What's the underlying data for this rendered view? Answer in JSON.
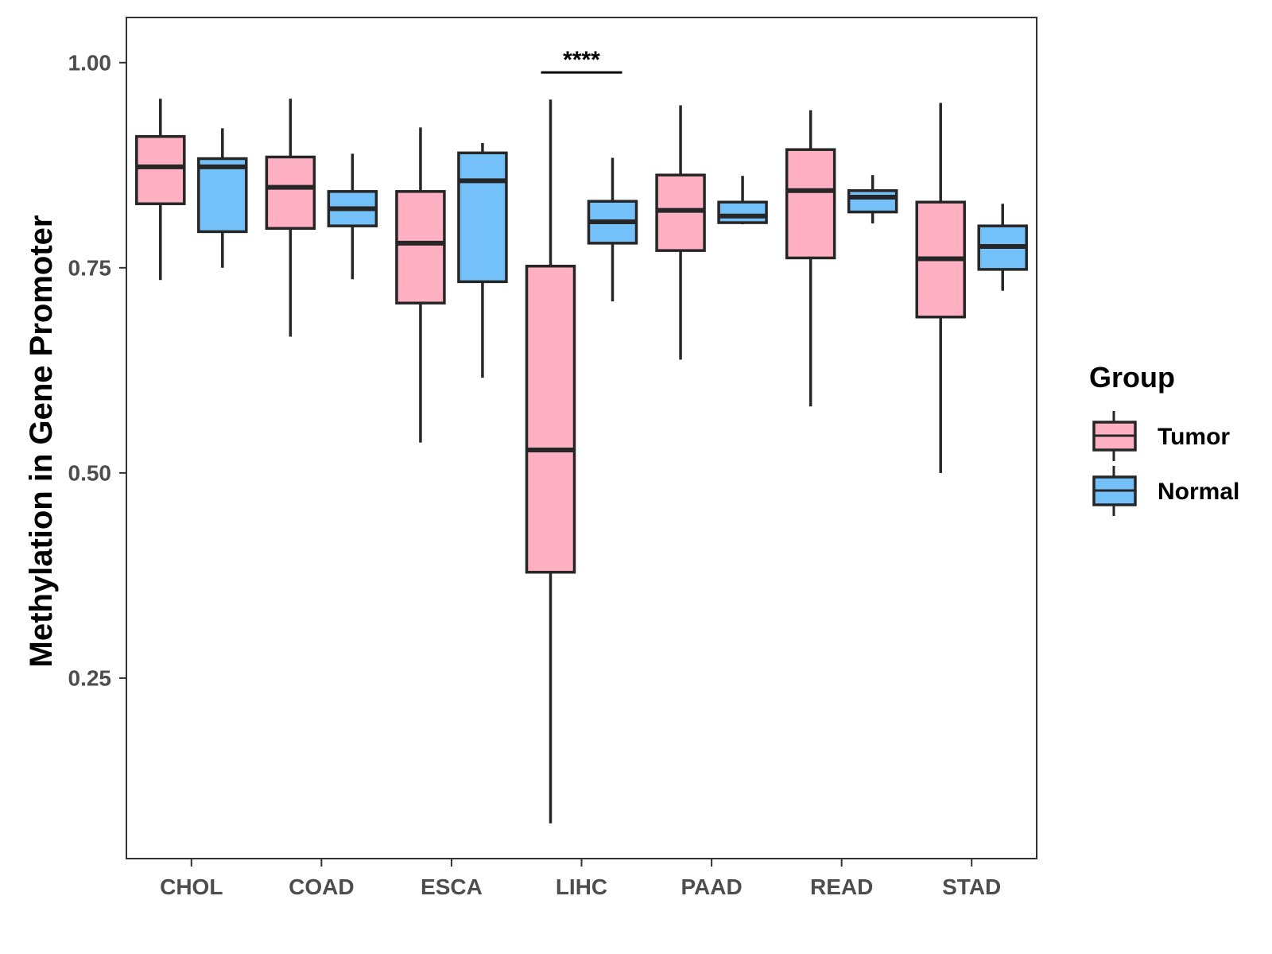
{
  "chart_data": {
    "type": "box",
    "title": "",
    "xlabel": "",
    "ylabel": "Methylation in Gene Promoter",
    "ylim": [
      0.03,
      1.055
    ],
    "yticks": [
      0.25,
      0.5,
      0.75,
      1.0
    ],
    "ytick_labels": [
      "0.25",
      "0.50",
      "0.75",
      "1.00"
    ],
    "grid": false,
    "legend": {
      "title": "Group",
      "position": "right"
    },
    "categories": [
      "CHOL",
      "COAD",
      "ESCA",
      "LIHC",
      "PAAD",
      "READ",
      "STAD"
    ],
    "series": [
      {
        "name": "Tumor",
        "color": "#FFB0C3",
        "boxes": [
          {
            "whisker_low": 0.735,
            "q1": 0.828,
            "median": 0.873,
            "q3": 0.91,
            "whisker_high": 0.956
          },
          {
            "whisker_low": 0.666,
            "q1": 0.798,
            "median": 0.848,
            "q3": 0.885,
            "whisker_high": 0.956
          },
          {
            "whisker_low": 0.537,
            "q1": 0.707,
            "median": 0.78,
            "q3": 0.843,
            "whisker_high": 0.921
          },
          {
            "whisker_low": 0.073,
            "q1": 0.379,
            "median": 0.528,
            "q3": 0.752,
            "whisker_high": 0.955
          },
          {
            "whisker_low": 0.638,
            "q1": 0.771,
            "median": 0.82,
            "q3": 0.863,
            "whisker_high": 0.948
          },
          {
            "whisker_low": 0.581,
            "q1": 0.762,
            "median": 0.844,
            "q3": 0.894,
            "whisker_high": 0.942
          },
          {
            "whisker_low": 0.5,
            "q1": 0.69,
            "median": 0.761,
            "q3": 0.83,
            "whisker_high": 0.951
          }
        ]
      },
      {
        "name": "Normal",
        "color": "#74C1FA",
        "boxes": [
          {
            "whisker_low": 0.75,
            "q1": 0.794,
            "median": 0.873,
            "q3": 0.883,
            "whisker_high": 0.92
          },
          {
            "whisker_low": 0.736,
            "q1": 0.801,
            "median": 0.822,
            "q3": 0.843,
            "whisker_high": 0.889
          },
          {
            "whisker_low": 0.616,
            "q1": 0.733,
            "median": 0.856,
            "q3": 0.89,
            "whisker_high": 0.902
          },
          {
            "whisker_low": 0.709,
            "q1": 0.78,
            "median": 0.806,
            "q3": 0.831,
            "whisker_high": 0.884
          },
          {
            "whisker_low": 0.803,
            "q1": 0.805,
            "median": 0.813,
            "q3": 0.83,
            "whisker_high": 0.862
          },
          {
            "whisker_low": 0.804,
            "q1": 0.818,
            "median": 0.836,
            "q3": 0.844,
            "whisker_high": 0.863
          },
          {
            "whisker_low": 0.722,
            "q1": 0.748,
            "median": 0.776,
            "q3": 0.801,
            "whisker_high": 0.828
          }
        ]
      }
    ],
    "annotations": [
      {
        "category": "LIHC",
        "label": "****",
        "y": 0.988
      }
    ]
  }
}
